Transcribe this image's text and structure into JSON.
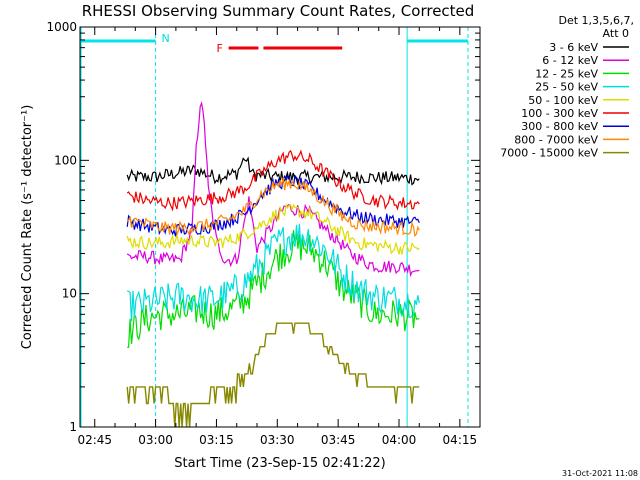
{
  "chart_data": {
    "type": "line",
    "title": "RHESSI Observing Summary Count Rates, Corrected",
    "xlabel": "Start Time (23-Sep-15 02:41:22)",
    "ylabel": "Corrected Count Rate (s⁻¹ detector⁻¹)",
    "yscale": "log",
    "ylim": [
      1,
      1000
    ],
    "xlim_minutes_after_start": [
      0,
      98.6
    ],
    "x_ticks": [
      "02:45",
      "03:00",
      "03:15",
      "03:30",
      "03:45",
      "04:00",
      "04:15"
    ],
    "y_ticks": [
      "1",
      "10",
      "100",
      "1000"
    ],
    "grid": false,
    "legend_placement": "top-right, outside plot",
    "legend_header": [
      "Det 1,3,5,6,7,",
      "Att 0"
    ],
    "annotations": {
      "night_markers": [
        {
          "label": "N",
          "from": "02:41",
          "to": "03:00"
        },
        {
          "label": "",
          "from": "04:02",
          "to": "04:17"
        }
      ],
      "flare_flag": {
        "label": "F",
        "from": "03:18",
        "to": "03:46"
      },
      "date_stamp": "31-Oct-2021 11:08"
    },
    "series": [
      {
        "name": "3 - 6 keV",
        "color": "#000000",
        "x": [
          "02:53",
          "03:00",
          "03:05",
          "03:10",
          "03:12",
          "03:15",
          "03:20",
          "03:22",
          "03:24",
          "03:30",
          "03:35",
          "03:40",
          "03:45",
          "03:50",
          "03:55",
          "04:00",
          "04:05"
        ],
        "values": [
          75,
          75,
          80,
          85,
          80,
          75,
          80,
          105,
          78,
          75,
          75,
          75,
          75,
          75,
          74,
          74,
          73
        ]
      },
      {
        "name": "6 - 12 keV",
        "color": "#dd00dd",
        "x": [
          "02:53",
          "02:58",
          "03:02",
          "03:06",
          "03:09",
          "03:10",
          "03:11",
          "03:12",
          "03:13",
          "03:15",
          "03:17",
          "03:20",
          "03:23",
          "03:25",
          "03:28",
          "03:32",
          "03:38",
          "03:42",
          "03:45",
          "03:48",
          "03:52",
          "03:55",
          "04:00",
          "04:05"
        ],
        "values": [
          19,
          19,
          18,
          18,
          30,
          120,
          270,
          200,
          60,
          25,
          18,
          18,
          50,
          22,
          30,
          45,
          40,
          30,
          25,
          20,
          17,
          16,
          16,
          15
        ]
      },
      {
        "name": "12 - 25 keV",
        "color": "#00dd00",
        "x": [
          "02:53",
          "02:58",
          "03:02",
          "03:06",
          "03:10",
          "03:14",
          "03:18",
          "03:22",
          "03:26",
          "03:30",
          "03:34",
          "03:38",
          "03:42",
          "03:46",
          "03:50",
          "03:54",
          "04:00",
          "04:05"
        ],
        "values": [
          5,
          6.5,
          7,
          7,
          7.5,
          7,
          7.5,
          9,
          13,
          19,
          23,
          22,
          17,
          11,
          9,
          7,
          7,
          6.5
        ]
      },
      {
        "name": "25 - 50 keV",
        "color": "#00dddd",
        "x": [
          "02:53",
          "02:58",
          "03:02",
          "03:06",
          "03:10",
          "03:14",
          "03:18",
          "03:22",
          "03:26",
          "03:30",
          "03:34",
          "03:38",
          "03:42",
          "03:46",
          "03:50",
          "03:54",
          "04:00",
          "04:05"
        ],
        "values": [
          8,
          8.5,
          9,
          9.5,
          9,
          9,
          10,
          12,
          17,
          24,
          28,
          27,
          21,
          14,
          11,
          9.5,
          9,
          8.5
        ]
      },
      {
        "name": "50 - 100 keV",
        "color": "#dddd00",
        "x": [
          "02:53",
          "02:58",
          "03:02",
          "03:06",
          "03:10",
          "03:14",
          "03:18",
          "03:22",
          "03:26",
          "03:30",
          "03:34",
          "03:38",
          "03:42",
          "03:46",
          "03:50",
          "03:54",
          "04:00",
          "04:05"
        ],
        "values": [
          25,
          24,
          24,
          25,
          25,
          24,
          25,
          28,
          33,
          40,
          42,
          40,
          34,
          28,
          24,
          23,
          22,
          22
        ]
      },
      {
        "name": "100 - 300 keV",
        "color": "#ee0000",
        "x": [
          "02:53",
          "02:58",
          "03:02",
          "03:06",
          "03:10",
          "03:14",
          "03:18",
          "03:22",
          "03:26",
          "03:30",
          "03:34",
          "03:38",
          "03:42",
          "03:46",
          "03:50",
          "03:54",
          "04:00",
          "04:05"
        ],
        "values": [
          55,
          50,
          48,
          48,
          50,
          52,
          55,
          62,
          80,
          100,
          110,
          100,
          80,
          65,
          55,
          50,
          48,
          47
        ]
      },
      {
        "name": "300 - 800 keV",
        "color": "#0000dd",
        "x": [
          "02:53",
          "02:58",
          "03:02",
          "03:06",
          "03:10",
          "03:14",
          "03:18",
          "03:22",
          "03:26",
          "03:30",
          "03:34",
          "03:38",
          "03:42",
          "03:46",
          "03:50",
          "03:54",
          "04:00",
          "04:05"
        ],
        "values": [
          35,
          32,
          30,
          30,
          31,
          32,
          35,
          40,
          55,
          68,
          70,
          62,
          50,
          42,
          38,
          36,
          35,
          34
        ]
      },
      {
        "name": "800 - 7000 keV",
        "color": "#ff8800",
        "x": [
          "02:53",
          "02:58",
          "03:02",
          "03:06",
          "03:10",
          "03:14",
          "03:18",
          "03:22",
          "03:26",
          "03:30",
          "03:34",
          "03:38",
          "03:42",
          "03:46",
          "03:50",
          "03:54",
          "04:00",
          "04:05"
        ],
        "values": [
          36,
          33,
          31,
          31,
          32,
          33,
          36,
          42,
          56,
          66,
          68,
          60,
          48,
          38,
          33,
          32,
          31,
          30
        ]
      },
      {
        "name": "7000 - 15000 keV",
        "color": "#888800",
        "x": [
          "02:53",
          "03:00",
          "03:08",
          "03:14",
          "03:18",
          "03:22",
          "03:25",
          "03:28",
          "03:31",
          "03:34",
          "03:37",
          "03:40",
          "03:43",
          "03:46",
          "03:50",
          "03:54",
          "04:00",
          "04:05"
        ],
        "values": [
          2,
          2,
          1.5,
          1.8,
          2,
          2.5,
          3.5,
          5,
          6,
          6.5,
          6,
          5,
          4,
          3,
          2.5,
          2,
          2,
          2
        ]
      }
    ]
  }
}
